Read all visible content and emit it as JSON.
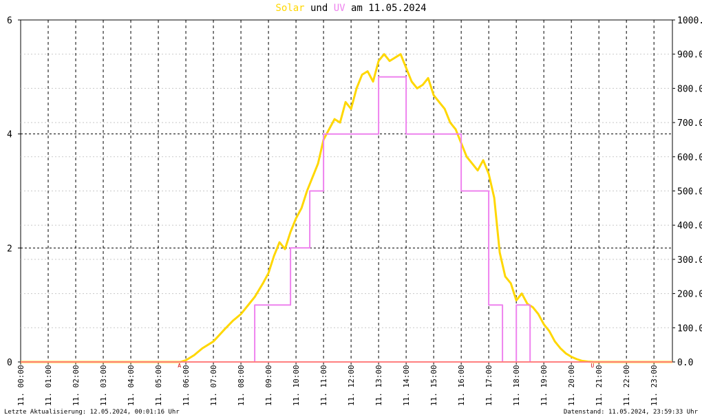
{
  "title": {
    "part1": "Solar",
    "part2": " und ",
    "part3": "UV",
    "part4": " am 11.05.2024"
  },
  "footer": {
    "left": "Letzte Aktualisierung: 12.05.2024, 00:01:16 Uhr",
    "right": "Datenstand: 11.05.2024, 23:59:33 Uhr"
  },
  "colors": {
    "solar": "#ffd700",
    "uv": "#ee82ee",
    "baseline": "#ff7f7f",
    "marker": "#d00000"
  },
  "chart_data": {
    "type": "line",
    "title": "Solar und UV am 11.05.2024",
    "x_ticks": [
      "11. 00:00",
      "11. 01:00",
      "11. 02:00",
      "11. 03:00",
      "11. 04:00",
      "11. 05:00",
      "11. 06:00",
      "11. 07:00",
      "11. 08:00",
      "11. 09:00",
      "11. 10:00",
      "11. 11:00",
      "11. 12:00",
      "11. 13:00",
      "11. 14:00",
      "11. 15:00",
      "11. 16:00",
      "11. 17:00",
      "11. 18:00",
      "11. 19:00",
      "11. 20:00",
      "11. 21:00",
      "11. 22:00",
      "11. 23:00"
    ],
    "xlim_hours": [
      0,
      23.67
    ],
    "y_left": {
      "ticks": [
        "0",
        "2",
        "4",
        "6"
      ],
      "range": [
        0,
        6
      ]
    },
    "y_right": {
      "ticks": [
        "0.0",
        "100.0",
        "200.0",
        "300.0",
        "400.0",
        "500.0",
        "600.0",
        "700.0",
        "800.0",
        "900.0",
        "1000.0"
      ],
      "range": [
        0,
        1000
      ]
    },
    "grid": true,
    "markers": [
      {
        "label": "A",
        "hour": 5.78
      },
      {
        "label": "U",
        "hour": 20.78
      }
    ],
    "series": [
      {
        "axis": "right",
        "x": [
          0,
          5.8,
          6.0,
          6.3,
          6.6,
          7.0,
          7.4,
          7.7,
          8.0,
          8.3,
          8.5,
          8.8,
          9.0,
          9.2,
          9.4,
          9.6,
          9.8,
          10.0,
          10.2,
          10.4,
          10.6,
          10.8,
          11.0,
          11.2,
          11.4,
          11.6,
          11.8,
          12.0,
          12.2,
          12.4,
          12.6,
          12.8,
          13.0,
          13.2,
          13.4,
          13.6,
          13.8,
          14.0,
          14.2,
          14.4,
          14.6,
          14.8,
          15.0,
          15.2,
          15.4,
          15.6,
          15.8,
          16.0,
          16.2,
          16.4,
          16.6,
          16.8,
          17.0,
          17.2,
          17.4,
          17.6,
          17.8,
          18.0,
          18.2,
          18.4,
          18.6,
          18.8,
          19.0,
          19.2,
          19.4,
          19.6,
          19.8,
          20.0,
          20.2,
          20.4,
          20.6,
          20.8,
          21.0,
          23.67
        ],
        "y": [
          0,
          0,
          5,
          20,
          40,
          60,
          95,
          120,
          140,
          170,
          190,
          230,
          260,
          310,
          350,
          330,
          380,
          420,
          450,
          500,
          540,
          580,
          650,
          680,
          710,
          700,
          760,
          740,
          800,
          840,
          850,
          820,
          880,
          900,
          880,
          890,
          900,
          860,
          820,
          800,
          810,
          830,
          780,
          760,
          740,
          700,
          680,
          640,
          600,
          580,
          560,
          590,
          550,
          480,
          320,
          250,
          230,
          180,
          200,
          170,
          160,
          140,
          110,
          90,
          60,
          40,
          25,
          15,
          8,
          3,
          1,
          0,
          0,
          0
        ]
      },
      {
        "axis": "left",
        "x": [
          0,
          8.5,
          8.5,
          9.8,
          9.8,
          10.5,
          10.5,
          11.0,
          11.0,
          12.0,
          12.0,
          13.0,
          13.0,
          14.0,
          14.0,
          15.0,
          15.0,
          16.0,
          16.0,
          17.0,
          17.0,
          17.5,
          17.5,
          18.0,
          18.0,
          18.5,
          18.5,
          23.67
        ],
        "y": [
          0,
          0,
          1,
          1,
          2,
          2,
          3,
          3,
          4,
          4,
          4,
          4,
          5,
          5,
          4,
          4,
          4,
          4,
          3,
          3,
          1,
          1,
          0,
          0,
          1,
          1,
          0,
          0
        ]
      }
    ]
  }
}
